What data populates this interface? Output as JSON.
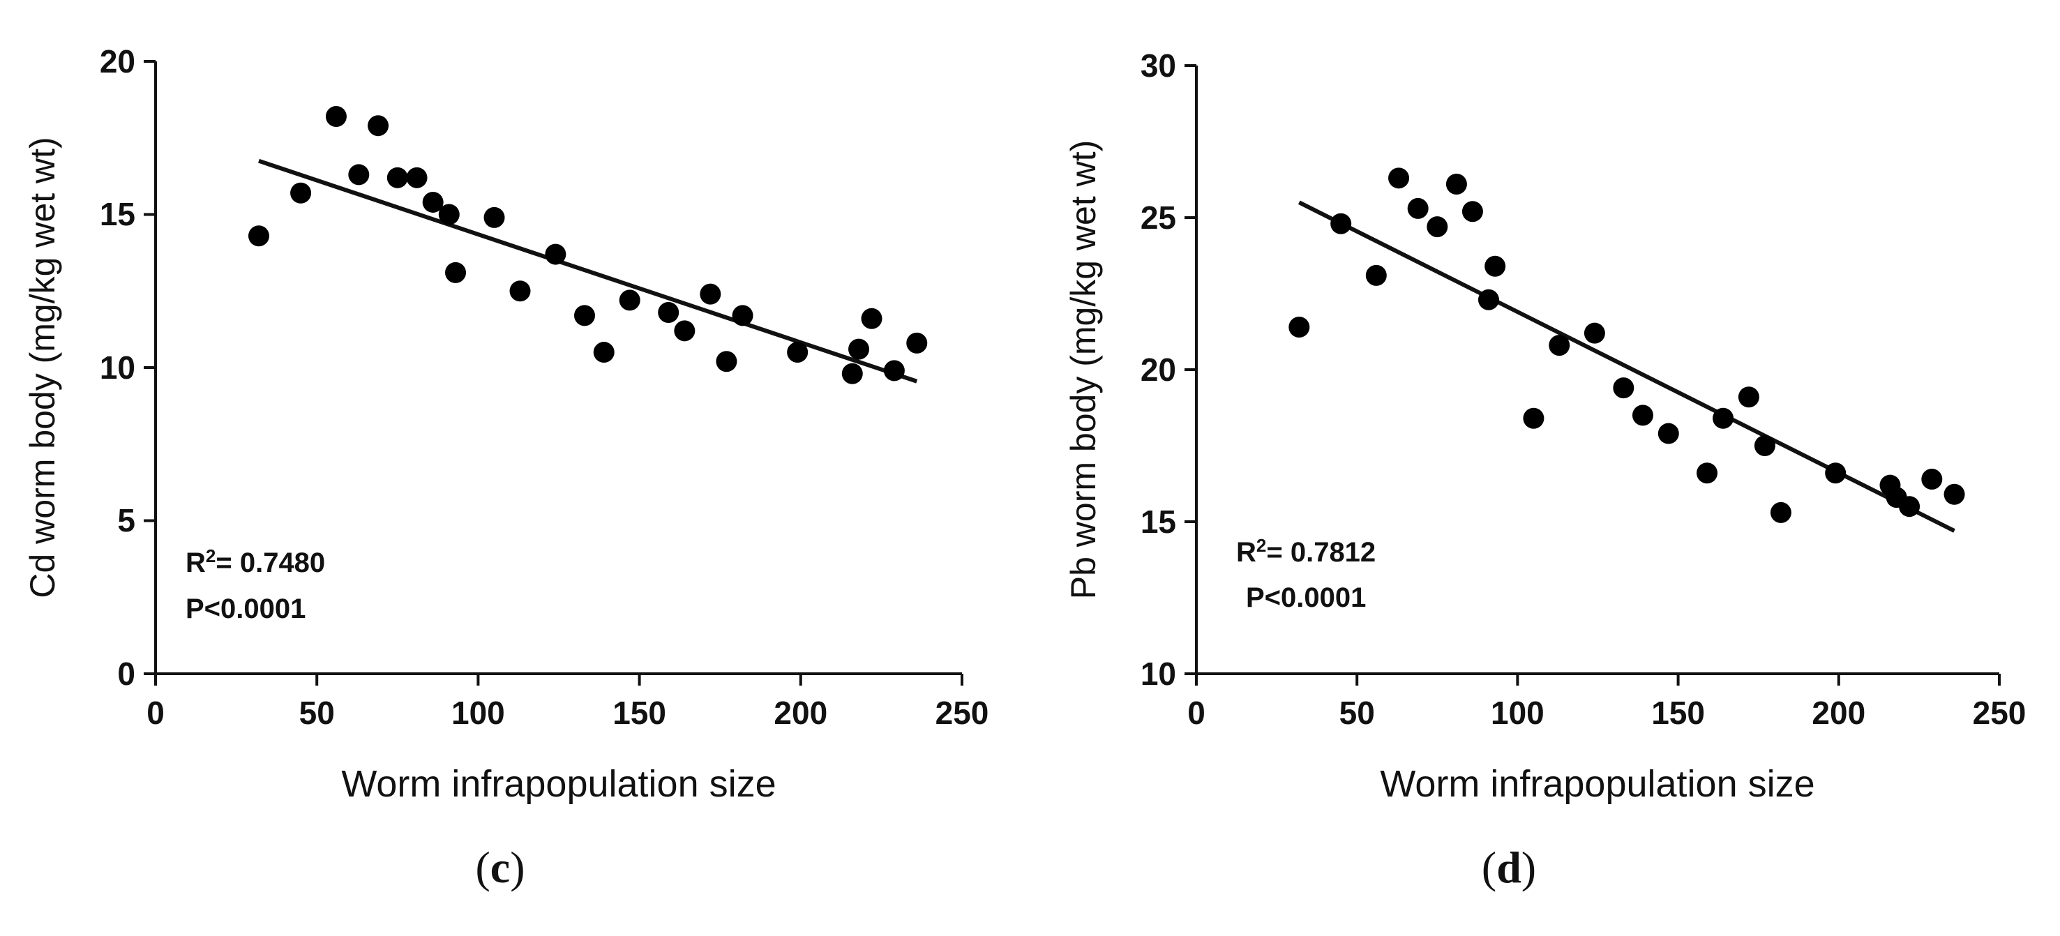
{
  "chart_data": [
    {
      "type": "scatter",
      "panel_label": "c",
      "xlabel": "Worm infrapopulation size",
      "ylabel": "Cd worm body (mg/kg wet wt)",
      "xlim": [
        0,
        250
      ],
      "ylim": [
        0,
        20
      ],
      "xticks": [
        0,
        50,
        100,
        150,
        200,
        250
      ],
      "yticks": [
        0,
        5,
        10,
        15,
        20
      ],
      "points": [
        [
          32,
          14.3
        ],
        [
          45,
          15.7
        ],
        [
          56,
          18.2
        ],
        [
          63,
          16.3
        ],
        [
          69,
          17.9
        ],
        [
          75,
          16.2
        ],
        [
          81,
          16.2
        ],
        [
          86,
          15.4
        ],
        [
          91,
          15.0
        ],
        [
          93,
          13.1
        ],
        [
          105,
          14.9
        ],
        [
          113,
          12.5
        ],
        [
          124,
          13.7
        ],
        [
          133,
          11.7
        ],
        [
          139,
          10.5
        ],
        [
          147,
          12.2
        ],
        [
          159,
          11.8
        ],
        [
          164,
          11.2
        ],
        [
          172,
          12.4
        ],
        [
          177,
          10.2
        ],
        [
          182,
          11.7
        ],
        [
          199,
          10.5
        ],
        [
          216,
          9.8
        ],
        [
          218,
          10.6
        ],
        [
          222,
          11.6
        ],
        [
          229,
          9.9
        ],
        [
          236,
          10.8
        ]
      ],
      "trend_line": {
        "x": [
          32,
          236
        ],
        "y": [
          16.75,
          9.55
        ]
      },
      "annotation": {
        "r2_prefix": "R",
        "r2_sup": "2",
        "r2_value": "= 0.7480",
        "p": "P<0.0001"
      },
      "grid": false,
      "legend": "none"
    },
    {
      "type": "scatter",
      "panel_label": "d",
      "xlabel": "Worm infrapopulation size",
      "ylabel": "Pb worm body (mg/kg wet wt)",
      "xlim": [
        0,
        250
      ],
      "ylim": [
        10,
        30
      ],
      "xticks": [
        0,
        50,
        100,
        150,
        200,
        250
      ],
      "yticks": [
        10,
        15,
        20,
        25,
        30
      ],
      "points": [
        [
          32,
          21.4
        ],
        [
          45,
          24.8
        ],
        [
          56,
          23.1
        ],
        [
          63,
          26.3
        ],
        [
          69,
          25.3
        ],
        [
          75,
          24.7
        ],
        [
          81,
          26.1
        ],
        [
          86,
          25.2
        ],
        [
          91,
          22.3
        ],
        [
          93,
          23.4
        ],
        [
          105,
          18.4
        ],
        [
          113,
          20.8
        ],
        [
          124,
          21.2
        ],
        [
          133,
          19.4
        ],
        [
          139,
          18.5
        ],
        [
          147,
          17.9
        ],
        [
          159,
          16.6
        ],
        [
          164,
          18.4
        ],
        [
          172,
          19.1
        ],
        [
          177,
          17.5
        ],
        [
          182,
          15.3
        ],
        [
          199,
          16.6
        ],
        [
          216,
          16.2
        ],
        [
          218,
          15.8
        ],
        [
          222,
          15.5
        ],
        [
          229,
          16.4
        ],
        [
          236,
          15.9
        ]
      ],
      "trend_line": {
        "x": [
          32,
          236
        ],
        "y": [
          25.5,
          14.7
        ]
      },
      "annotation": {
        "r2_prefix": "R",
        "r2_sup": "2",
        "r2_value": "= 0.7812",
        "p": "P<0.0001"
      },
      "grid": false,
      "legend": "none"
    }
  ]
}
